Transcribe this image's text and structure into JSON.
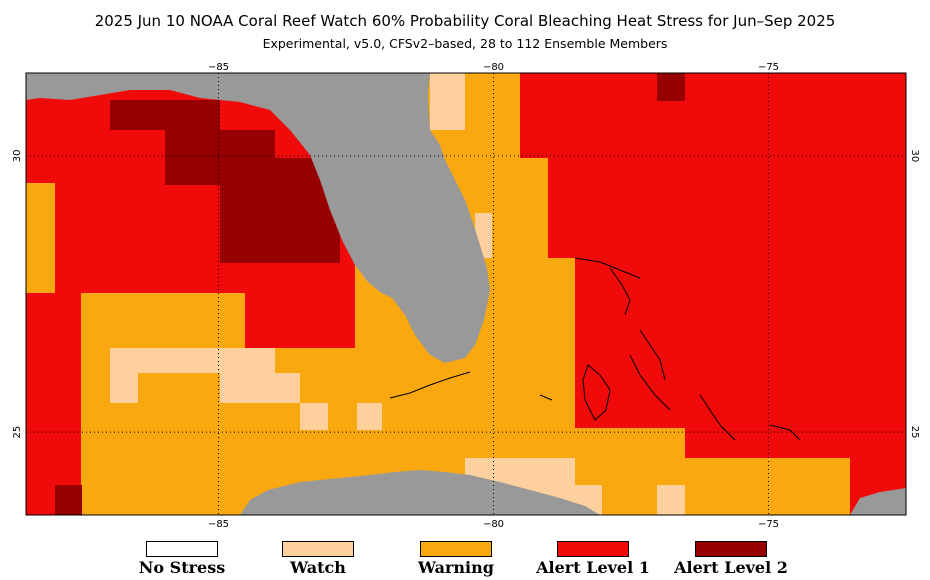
{
  "title": "2025 Jun 10 NOAA Coral Reef Watch 60% Probability Coral Bleaching Heat Stress for Jun–Sep 2025",
  "subtitle": "Experimental, v5.0, CFSv2–based, 28 to 112 Ensemble Members",
  "map": {
    "lon_range": [
      -88.5,
      -72.5
    ],
    "lat_range": [
      23.5,
      31.5
    ],
    "lon_ticks": [
      {
        "value": -85,
        "label": "−85"
      },
      {
        "value": -80,
        "label": "−80"
      },
      {
        "value": -75,
        "label": "−75"
      }
    ],
    "lat_ticks": [
      {
        "value": 30,
        "label": "30"
      },
      {
        "value": 25,
        "label": "25"
      }
    ],
    "land_color": "#999999",
    "grid_cell_deg": 0.5,
    "legend": [
      {
        "key": "none",
        "label": "No Stress",
        "color": "#ffffff"
      },
      {
        "key": "watch",
        "label": "Watch",
        "color": "#fdd09e"
      },
      {
        "key": "warning",
        "label": "Warning",
        "color": "#f9a90f"
      },
      {
        "key": "alert1",
        "label": "Alert Level 1",
        "color": "#f00a0a"
      },
      {
        "key": "alert2",
        "label": "Alert Level 2",
        "color": "#960000"
      }
    ]
  }
}
